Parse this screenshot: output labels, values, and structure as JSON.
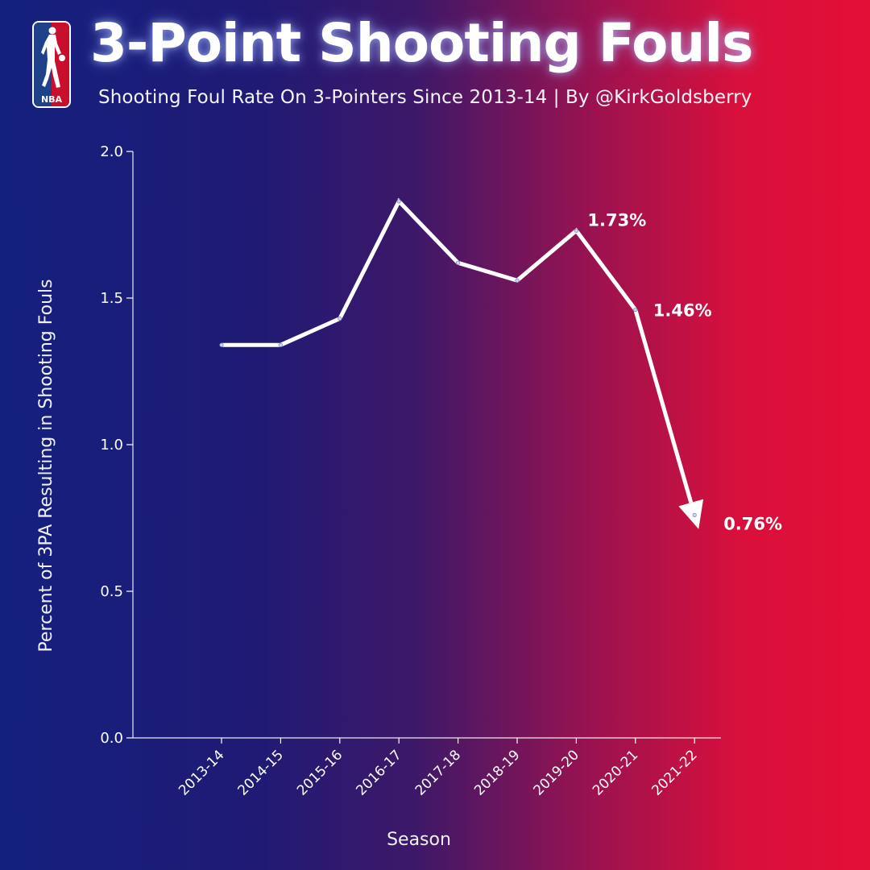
{
  "header": {
    "title": "3-Point Shooting Fouls",
    "subtitle": "Shooting Foul Rate On 3-Pointers Since 2013-14 | By @KirkGoldsberry",
    "logo_text": "NBA"
  },
  "colors": {
    "line": "#ffffff",
    "logo_blue": "#1d428a",
    "logo_red": "#c8102e",
    "background_left": "#14207e",
    "background_right": "#e40f37"
  },
  "chart_data": {
    "type": "line",
    "title": "3-Point Shooting Fouls",
    "subtitle": "Shooting Foul Rate On 3-Pointers Since 2013-14 | By @KirkGoldsberry",
    "xlabel": "Season",
    "ylabel": "Percent of 3PA Resulting in Shooting Fouls",
    "categories": [
      "2013-14",
      "2014-15",
      "2015-16",
      "2016-17",
      "2017-18",
      "2018-19",
      "2019-20",
      "2020-21",
      "2021-22"
    ],
    "series": [
      {
        "values": [
          1.34,
          1.34,
          1.43,
          1.83,
          1.62,
          1.56,
          1.73,
          1.46,
          0.76
        ]
      }
    ],
    "ylim": [
      0,
      2.0
    ],
    "yticks": [
      0.0,
      0.5,
      1.0,
      1.5,
      2.0
    ],
    "ytick_labels": [
      "0.0",
      "0.5",
      "1.0",
      "1.5",
      "2.0"
    ],
    "annotations": [
      {
        "category": "2019-20",
        "value": 1.73,
        "text": "1.73%"
      },
      {
        "category": "2020-21",
        "value": 1.46,
        "text": "1.46%"
      },
      {
        "category": "2021-22",
        "value": 0.76,
        "text": "0.76%"
      }
    ],
    "grid": false,
    "legend": "none",
    "last_point_arrow": true
  }
}
